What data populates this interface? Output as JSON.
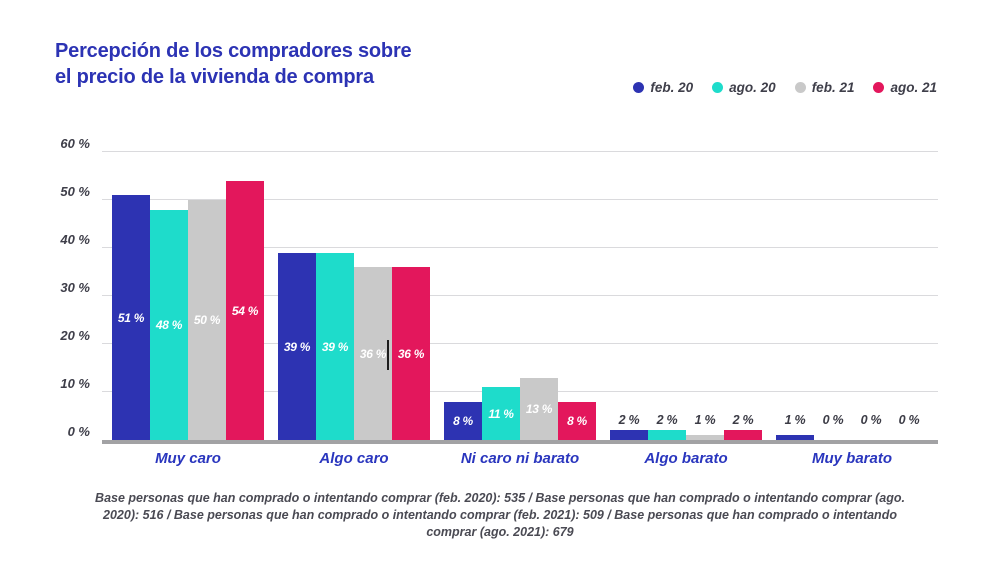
{
  "title": {
    "line1": "Percepción de los compradores sobre",
    "line2": "el precio de la vivienda de compra",
    "color": "#2c33b4"
  },
  "chart_data": {
    "type": "bar",
    "title": "Percepción de los compradores sobre el precio de la vivienda de compra",
    "categories": [
      "Muy caro",
      "Algo caro",
      "Ni caro ni barato",
      "Algo barato",
      "Muy barato"
    ],
    "series": [
      {
        "name": "feb. 20",
        "color": "#2d33b2",
        "values": [
          51,
          39,
          8,
          2,
          1
        ]
      },
      {
        "name": "ago. 20",
        "color": "#1edccb",
        "values": [
          48,
          39,
          11,
          2,
          0
        ]
      },
      {
        "name": "feb. 21",
        "color": "#c9c9c9",
        "values": [
          50,
          36,
          13,
          1,
          0
        ]
      },
      {
        "name": "ago. 21",
        "color": "#e3175c",
        "values": [
          54,
          36,
          8,
          2,
          0
        ]
      }
    ],
    "unit": "%",
    "ylim": [
      0,
      60
    ],
    "yticks": [
      0,
      10,
      20,
      30,
      40,
      50,
      60
    ],
    "ytick_label_format": "{v} %",
    "value_label_format": "{v} %",
    "value_label_inside_min": 8,
    "grid": true,
    "legend_position": "top-right",
    "category_label_color": "#2a36be",
    "xlabel": "",
    "ylabel": ""
  },
  "footer": {
    "lines": [
      "Base personas que han comprado o intentando comprar (feb. 2020): 535 / Base personas que han comprado o intentando comprar (ago.",
      "2020): 516 / Base personas que han comprado o intentando comprar (feb. 2021): 509 / Base personas que han comprado o intentando",
      "comprar (ago. 2021): 679"
    ]
  }
}
